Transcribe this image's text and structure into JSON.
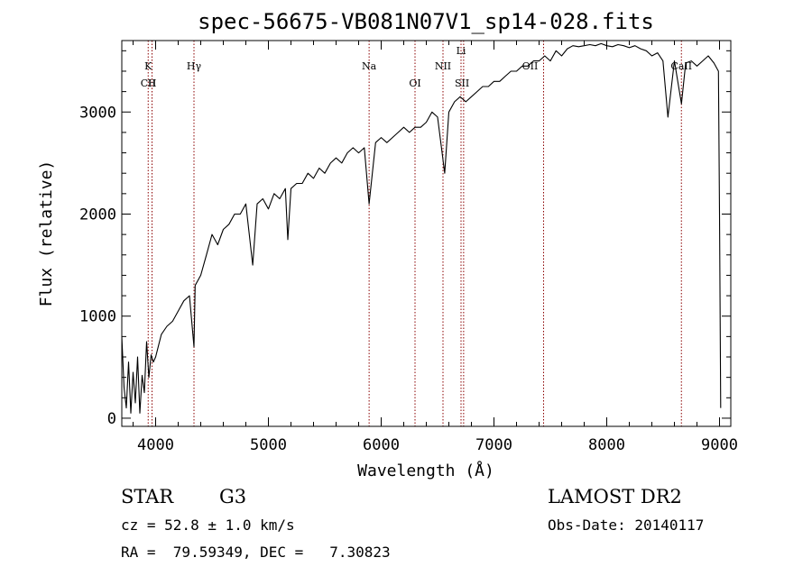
{
  "chart_data": {
    "type": "line",
    "title": "spec-56675-VB081N07V1_sp14-028.fits",
    "xlabel": "Wavelength (Å)",
    "ylabel": "Flux (relative)",
    "xlim": [
      3700,
      9100
    ],
    "ylim": [
      -80,
      3700
    ],
    "xticks": [
      4000,
      5000,
      6000,
      7000,
      8000,
      9000
    ],
    "yticks": [
      0,
      1000,
      2000,
      3000
    ],
    "grid": false,
    "series": [
      {
        "color": "#000000",
        "x": [
          3700,
          3720,
          3740,
          3760,
          3780,
          3800,
          3820,
          3840,
          3860,
          3880,
          3900,
          3920,
          3940,
          3960,
          3980,
          4000,
          4050,
          4100,
          4150,
          4200,
          4250,
          4300,
          4340,
          4350,
          4400,
          4450,
          4500,
          4550,
          4600,
          4650,
          4700,
          4750,
          4800,
          4861,
          4900,
          4950,
          5000,
          5050,
          5100,
          5150,
          5172,
          5200,
          5250,
          5300,
          5350,
          5400,
          5450,
          5500,
          5550,
          5600,
          5650,
          5700,
          5750,
          5800,
          5850,
          5893,
          5950,
          6000,
          6050,
          6100,
          6150,
          6200,
          6250,
          6300,
          6350,
          6400,
          6450,
          6500,
          6563,
          6600,
          6650,
          6700,
          6750,
          6800,
          6850,
          6900,
          6950,
          7000,
          7050,
          7100,
          7150,
          7200,
          7250,
          7300,
          7350,
          7400,
          7450,
          7500,
          7550,
          7600,
          7650,
          7700,
          7750,
          7800,
          7850,
          7900,
          7950,
          8000,
          8050,
          8100,
          8150,
          8200,
          8250,
          8300,
          8350,
          8400,
          8450,
          8498,
          8542,
          8600,
          8662,
          8700,
          8750,
          8800,
          8850,
          8900,
          8950,
          8990,
          9000,
          9010
        ],
        "y": [
          800,
          300,
          100,
          550,
          50,
          450,
          150,
          600,
          50,
          420,
          250,
          750,
          400,
          620,
          550,
          600,
          820,
          900,
          950,
          1050,
          1150,
          1200,
          700,
          1300,
          1400,
          1600,
          1800,
          1700,
          1850,
          1900,
          2000,
          2000,
          2100,
          1500,
          2100,
          2150,
          2050,
          2200,
          2150,
          2250,
          1750,
          2250,
          2300,
          2300,
          2400,
          2350,
          2450,
          2400,
          2500,
          2550,
          2500,
          2600,
          2650,
          2600,
          2650,
          2100,
          2700,
          2750,
          2700,
          2750,
          2800,
          2850,
          2800,
          2850,
          2850,
          2900,
          3000,
          2950,
          2400,
          3000,
          3100,
          3150,
          3100,
          3150,
          3200,
          3250,
          3250,
          3300,
          3300,
          3350,
          3400,
          3400,
          3450,
          3450,
          3500,
          3500,
          3550,
          3500,
          3600,
          3550,
          3620,
          3650,
          3640,
          3650,
          3660,
          3650,
          3670,
          3650,
          3640,
          3660,
          3650,
          3630,
          3650,
          3620,
          3600,
          3550,
          3580,
          3500,
          2950,
          3500,
          3080,
          3480,
          3500,
          3450,
          3500,
          3550,
          3480,
          3400,
          2000,
          100
        ]
      }
    ],
    "line_markers": [
      {
        "label": "CII",
        "x": 3934,
        "row": 2
      },
      {
        "label": "K",
        "x": 3934,
        "row": 1
      },
      {
        "label": "H",
        "x": 3968,
        "row": 2
      },
      {
        "label": "Hγ",
        "x": 4340,
        "row": 1
      },
      {
        "label": "Na",
        "x": 5893,
        "row": 1
      },
      {
        "label": "OI",
        "x": 6300,
        "row": 2
      },
      {
        "label": "NII",
        "x": 6548,
        "row": 1
      },
      {
        "label": "Li",
        "x": 6708,
        "row": 0
      },
      {
        "label": "SII",
        "x": 6717,
        "row": 2
      },
      {
        "label": "OII",
        "x": 7320,
        "row": 1
      },
      {
        "label": "CaII",
        "x": 8662,
        "row": 1
      }
    ],
    "marker_lines_x": [
      3934,
      3968,
      4340,
      5893,
      6300,
      6548,
      6708,
      6731,
      7440,
      8662
    ],
    "marker_color": "#8b0000"
  },
  "info": {
    "class_label": "STAR",
    "subclass": "G3",
    "redshift_line": "cz = 52.8 ± 1.0 km/s",
    "coords_line": "RA =  79.59349, DEC =   7.30823",
    "survey": "LAMOST DR2",
    "obs_date_line": "Obs-Date: 20140117"
  }
}
